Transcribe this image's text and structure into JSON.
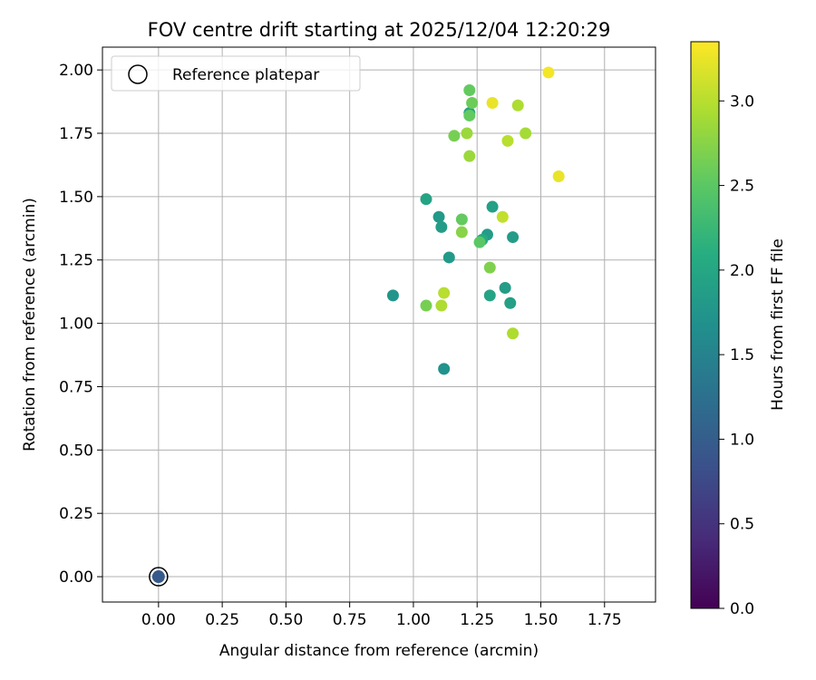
{
  "chart_data": {
    "type": "scatter",
    "title": "FOV centre drift starting at 2025/12/04 12:20:29",
    "xlabel": "Angular distance from reference (arcmin)",
    "ylabel": "Rotation from reference (arcmin)",
    "xlim": [
      -0.22,
      1.95
    ],
    "ylim": [
      -0.1,
      2.09
    ],
    "x_ticks": [
      0.0,
      0.25,
      0.5,
      0.75,
      1.0,
      1.25,
      1.5,
      1.75
    ],
    "x_tick_labels": [
      "0.00",
      "0.25",
      "0.50",
      "0.75",
      "1.00",
      "1.25",
      "1.50",
      "1.75"
    ],
    "y_ticks": [
      0.0,
      0.25,
      0.5,
      0.75,
      1.0,
      1.25,
      1.5,
      1.75,
      2.0
    ],
    "y_tick_labels": [
      "0.00",
      "0.25",
      "0.50",
      "0.75",
      "1.00",
      "1.25",
      "1.50",
      "1.75",
      "2.00"
    ],
    "grid": true,
    "legend": {
      "placement": "top-left",
      "entries": [
        "Reference platepar"
      ]
    },
    "colorbar": {
      "label": "Hours from first FF file",
      "range": [
        0.0,
        3.35
      ],
      "ticks": [
        0.0,
        0.5,
        1.0,
        1.5,
        2.0,
        2.5,
        3.0
      ],
      "tick_labels": [
        "0.0",
        "0.5",
        "1.0",
        "1.5",
        "2.0",
        "2.5",
        "3.0"
      ],
      "colormap": "viridis"
    },
    "reference_point": {
      "x": 0.0,
      "y": 0.0,
      "c": 0.95
    },
    "points": [
      {
        "x": 0.92,
        "y": 1.11,
        "c": 1.75
      },
      {
        "x": 1.12,
        "y": 0.82,
        "c": 1.7
      },
      {
        "x": 1.05,
        "y": 1.49,
        "c": 1.95
      },
      {
        "x": 1.1,
        "y": 1.42,
        "c": 1.8
      },
      {
        "x": 1.11,
        "y": 1.38,
        "c": 1.85
      },
      {
        "x": 1.14,
        "y": 1.26,
        "c": 1.8
      },
      {
        "x": 1.29,
        "y": 1.35,
        "c": 1.85
      },
      {
        "x": 1.27,
        "y": 1.33,
        "c": 2.05
      },
      {
        "x": 1.31,
        "y": 1.46,
        "c": 1.9
      },
      {
        "x": 1.39,
        "y": 1.34,
        "c": 1.85
      },
      {
        "x": 1.3,
        "y": 1.11,
        "c": 1.95
      },
      {
        "x": 1.36,
        "y": 1.14,
        "c": 1.85
      },
      {
        "x": 1.38,
        "y": 1.08,
        "c": 1.9
      },
      {
        "x": 1.22,
        "y": 1.83,
        "c": 1.95
      },
      {
        "x": 1.22,
        "y": 1.92,
        "c": 2.55
      },
      {
        "x": 1.23,
        "y": 1.87,
        "c": 2.6
      },
      {
        "x": 1.22,
        "y": 1.82,
        "c": 2.55
      },
      {
        "x": 1.19,
        "y": 1.41,
        "c": 2.55
      },
      {
        "x": 1.26,
        "y": 1.32,
        "c": 2.5
      },
      {
        "x": 1.05,
        "y": 1.07,
        "c": 2.65
      },
      {
        "x": 1.16,
        "y": 1.74,
        "c": 2.65
      },
      {
        "x": 1.21,
        "y": 1.75,
        "c": 2.85
      },
      {
        "x": 1.22,
        "y": 1.66,
        "c": 2.85
      },
      {
        "x": 1.19,
        "y": 1.36,
        "c": 2.75
      },
      {
        "x": 1.3,
        "y": 1.22,
        "c": 2.7
      },
      {
        "x": 1.11,
        "y": 1.07,
        "c": 2.95
      },
      {
        "x": 1.12,
        "y": 1.12,
        "c": 3.0
      },
      {
        "x": 1.31,
        "y": 1.87,
        "c": 3.25
      },
      {
        "x": 1.41,
        "y": 1.86,
        "c": 2.95
      },
      {
        "x": 1.37,
        "y": 1.72,
        "c": 3.0
      },
      {
        "x": 1.44,
        "y": 1.75,
        "c": 2.9
      },
      {
        "x": 1.35,
        "y": 1.42,
        "c": 3.05
      },
      {
        "x": 1.39,
        "y": 0.96,
        "c": 2.95
      },
      {
        "x": 1.53,
        "y": 1.99,
        "c": 3.3
      },
      {
        "x": 1.57,
        "y": 1.58,
        "c": 3.25
      }
    ]
  }
}
